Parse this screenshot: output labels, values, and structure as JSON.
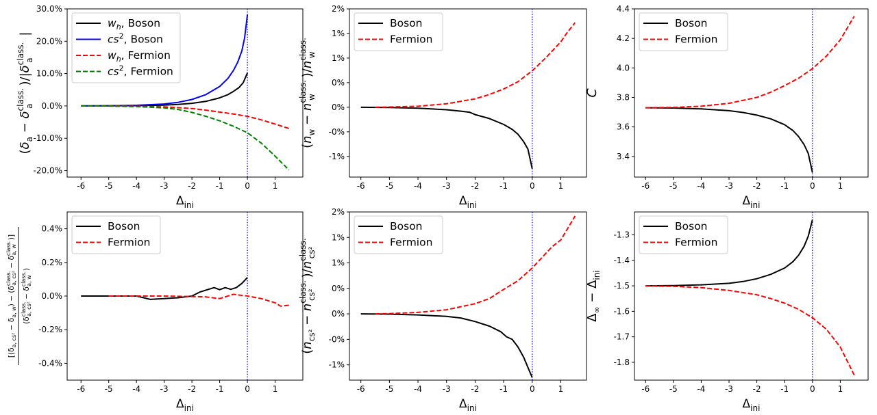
{
  "chart_data": [
    {
      "id": "p1",
      "type": "line",
      "xlabel": "Δ_ini",
      "ylabel": "(δ_a − δ_a^class.)/|δ_a^class.|",
      "xlim": [
        -6.5,
        2.0
      ],
      "ylim": [
        -22.0,
        30.0
      ],
      "xticks": [
        -6,
        -5,
        -4,
        -3,
        -2,
        -1,
        0,
        1
      ],
      "yticks": [
        -20,
        -10,
        0,
        10,
        20,
        30
      ],
      "ytick_labels": [
        "-20.0%",
        "-10.0%",
        "0.0%",
        "10.0%",
        "20.0%",
        "30.0%"
      ],
      "vline_x": 0,
      "legend_position": "top-left",
      "series": [
        {
          "name": "w_h, Boson",
          "legend_label": "w_h, Boson",
          "color": "#000000",
          "style": "solid",
          "x": [
            -6,
            -5,
            -4,
            -3,
            -2.5,
            -2,
            -1.5,
            -1,
            -0.7,
            -0.5,
            -0.3,
            -0.15,
            0
          ],
          "y": [
            0,
            0.02,
            0.08,
            0.25,
            0.45,
            0.8,
            1.4,
            2.5,
            3.5,
            4.5,
            5.7,
            7.2,
            10.2
          ]
        },
        {
          "name": "cs², Boson",
          "legend_label": "cs², Boson",
          "color": "#0000ff",
          "style": "solid",
          "x": [
            -6,
            -5,
            -4,
            -3,
            -2.5,
            -2,
            -1.5,
            -1,
            -0.7,
            -0.5,
            -0.35,
            -0.2,
            -0.1,
            0
          ],
          "y": [
            0,
            0.05,
            0.2,
            0.6,
            1.1,
            2.0,
            3.5,
            6.0,
            8.5,
            11.0,
            13.5,
            17.0,
            21.0,
            28.2
          ]
        },
        {
          "name": "w_h, Fermion",
          "legend_label": "w_h, Fermion",
          "color": "#ff0000",
          "style": "dashed",
          "x": [
            -6,
            -5,
            -4,
            -3,
            -2,
            -1.5,
            -1,
            -0.5,
            0,
            0.5,
            1,
            1.5
          ],
          "y": [
            0,
            -0.02,
            -0.1,
            -0.3,
            -0.8,
            -1.3,
            -1.9,
            -2.5,
            -3.2,
            -4.3,
            -5.6,
            -7.0
          ]
        },
        {
          "name": "cs², Fermion",
          "legend_label": "cs², Fermion",
          "color": "#008000",
          "style": "dashed",
          "x": [
            -6,
            -5,
            -4,
            -3,
            -2.5,
            -2,
            -1.5,
            -1,
            -0.5,
            0,
            0.5,
            1,
            1.5
          ],
          "y": [
            0,
            -0.05,
            -0.2,
            -0.6,
            -1.1,
            -2.0,
            -3.2,
            -4.6,
            -6.3,
            -8.3,
            -11.5,
            -15.5,
            -19.8
          ]
        }
      ]
    },
    {
      "id": "p2",
      "type": "line",
      "xlabel": "Δ_ini",
      "ylabel": "(n_w − n_w^class.)/n_w^class.",
      "xlim": [
        -6.4,
        1.9
      ],
      "ylim": [
        -1.42,
        2.0
      ],
      "xticks": [
        -6,
        -5,
        -4,
        -3,
        -2,
        -1,
        0,
        1
      ],
      "yticks": [
        -1.0,
        -0.5,
        0.0,
        0.5,
        1.0,
        1.5,
        2.0
      ],
      "ytick_labels": [
        "-1%",
        "-0%",
        "0%",
        "0%",
        "1%",
        "1%",
        "2%"
      ],
      "vline_x": 0,
      "legend_position": "top-left",
      "series": [
        {
          "name": "Boson",
          "legend_label": "Boson",
          "color": "#000000",
          "style": "solid",
          "x": [
            -6,
            -5,
            -4,
            -3,
            -2.5,
            -2.2,
            -2,
            -1.5,
            -1,
            -0.7,
            -0.5,
            -0.3,
            -0.15,
            0
          ],
          "y": [
            0,
            -0.005,
            -0.02,
            -0.05,
            -0.08,
            -0.1,
            -0.15,
            -0.23,
            -0.35,
            -0.45,
            -0.55,
            -0.7,
            -0.85,
            -1.25
          ]
        },
        {
          "name": "Fermion",
          "legend_label": "Fermion",
          "color": "#ff0000",
          "style": "dashed",
          "x": [
            -5.5,
            -5,
            -4,
            -3,
            -2,
            -1.5,
            -1,
            -0.5,
            0,
            0.5,
            1,
            1.2,
            1.5
          ],
          "y": [
            0,
            0.005,
            0.02,
            0.07,
            0.17,
            0.26,
            0.37,
            0.52,
            0.74,
            1.02,
            1.33,
            1.5,
            1.72
          ]
        }
      ]
    },
    {
      "id": "p3",
      "type": "line",
      "xlabel": "Δ_ini",
      "ylabel": "C",
      "xlim": [
        -6.4,
        2.0
      ],
      "ylim": [
        3.26,
        4.4
      ],
      "xticks": [
        -6,
        -5,
        -4,
        -3,
        -2,
        -1,
        0,
        1
      ],
      "yticks": [
        3.4,
        3.6,
        3.8,
        4.0,
        4.2,
        4.4
      ],
      "ytick_labels": [
        "3.4",
        "3.6",
        "3.8",
        "4.0",
        "4.2",
        "4.4"
      ],
      "vline_x": 0,
      "legend_position": "top-left",
      "series": [
        {
          "name": "Boson",
          "legend_label": "Boson",
          "color": "#000000",
          "style": "solid",
          "x": [
            -6,
            -5,
            -4,
            -3,
            -2.5,
            -2,
            -1.5,
            -1,
            -0.7,
            -0.5,
            -0.3,
            -0.15,
            0
          ],
          "y": [
            3.73,
            3.728,
            3.722,
            3.71,
            3.698,
            3.68,
            3.655,
            3.615,
            3.575,
            3.535,
            3.48,
            3.42,
            3.29
          ]
        },
        {
          "name": "Fermion",
          "legend_label": "Fermion",
          "color": "#ff0000",
          "style": "dashed",
          "x": [
            -6,
            -5,
            -4,
            -3,
            -2,
            -1.5,
            -1,
            -0.5,
            0,
            0.5,
            1,
            1.5
          ],
          "y": [
            3.73,
            3.732,
            3.74,
            3.76,
            3.8,
            3.835,
            3.88,
            3.93,
            3.995,
            4.08,
            4.19,
            4.35
          ]
        }
      ]
    },
    {
      "id": "p4",
      "type": "line",
      "xlabel": "Δ_ini",
      "ylabel": "[(δ_a,cs² − δ_a,w) − (δ_a,cs²^class. − δ_a,w^class.)] / (δ_a,cs²^class. − δ_a,w^class.)",
      "xlim": [
        -6.5,
        2.0
      ],
      "ylim": [
        -0.5,
        0.5
      ],
      "xticks": [
        -6,
        -5,
        -4,
        -3,
        -2,
        -1,
        0,
        1
      ],
      "yticks": [
        -0.4,
        -0.2,
        0.0,
        0.2,
        0.4
      ],
      "ytick_labels": [
        "-0.4%",
        "-0.2%",
        "0.0%",
        "0.2%",
        "0.4%"
      ],
      "vline_x": 0,
      "legend_position": "top-left",
      "series": [
        {
          "name": "Boson",
          "legend_label": "Boson",
          "color": "#000000",
          "style": "solid",
          "x": [
            -6,
            -5,
            -4,
            -3.5,
            -3,
            -2.5,
            -2,
            -1.7,
            -1.5,
            -1.2,
            -1,
            -0.8,
            -0.6,
            -0.4,
            -0.2,
            0
          ],
          "y": [
            0,
            0,
            0,
            -0.02,
            -0.015,
            -0.01,
            0.0,
            0.025,
            0.035,
            0.05,
            0.038,
            0.05,
            0.04,
            0.05,
            0.075,
            0.11
          ]
        },
        {
          "name": "Fermion",
          "legend_label": "Fermion",
          "color": "#ff0000",
          "style": "dashed",
          "x": [
            -5,
            -4,
            -3,
            -2,
            -1.5,
            -1,
            -0.5,
            0,
            0.5,
            0.8,
            1,
            1.2,
            1.5
          ],
          "y": [
            0,
            0,
            0,
            -0.003,
            -0.005,
            -0.015,
            0.01,
            0.0,
            -0.015,
            -0.03,
            -0.04,
            -0.06,
            -0.055
          ]
        }
      ]
    },
    {
      "id": "p5",
      "type": "line",
      "xlabel": "Δ_ini",
      "ylabel": "(n_cs² − n_cs²^class.)/n_cs²^class.",
      "xlim": [
        -6.4,
        1.9
      ],
      "ylim": [
        -1.3,
        2.0
      ],
      "xticks": [
        -6,
        -5,
        -4,
        -3,
        -2,
        -1,
        0,
        1
      ],
      "yticks": [
        -1.0,
        -0.5,
        0.0,
        0.5,
        1.0,
        1.5,
        2.0
      ],
      "ytick_labels": [
        "-1%",
        "-0%",
        "0%",
        "0%",
        "1%",
        "1%",
        "2%"
      ],
      "vline_x": 0,
      "legend_position": "top-left",
      "series": [
        {
          "name": "Boson",
          "legend_label": "Boson",
          "color": "#000000",
          "style": "solid",
          "x": [
            -6,
            -5,
            -4,
            -3,
            -2.5,
            -2,
            -1.5,
            -1.1,
            -0.9,
            -0.7,
            -0.5,
            -0.3,
            -0.15,
            0
          ],
          "y": [
            0,
            -0.005,
            -0.02,
            -0.05,
            -0.08,
            -0.15,
            -0.24,
            -0.35,
            -0.45,
            -0.5,
            -0.65,
            -0.85,
            -1.05,
            -1.25
          ]
        },
        {
          "name": "Fermion",
          "legend_label": "Fermion",
          "color": "#ff0000",
          "style": "dashed",
          "x": [
            -5.5,
            -5,
            -4,
            -3,
            -2,
            -1.5,
            -1,
            -0.5,
            0,
            0.5,
            0.7,
            1,
            1.5
          ],
          "y": [
            0,
            0.005,
            0.03,
            0.08,
            0.2,
            0.3,
            0.48,
            0.65,
            0.9,
            1.2,
            1.32,
            1.45,
            1.92
          ]
        }
      ]
    },
    {
      "id": "p6",
      "type": "line",
      "xlabel": "Δ_ini",
      "ylabel": "Δ_∞ − Δ_ini",
      "xlim": [
        -6.4,
        2.0
      ],
      "ylim": [
        -1.87,
        -1.21
      ],
      "xticks": [
        -6,
        -5,
        -4,
        -3,
        -2,
        -1,
        0,
        1
      ],
      "yticks": [
        -1.8,
        -1.7,
        -1.6,
        -1.5,
        -1.4,
        -1.3
      ],
      "ytick_labels": [
        "-1.8",
        "-1.7",
        "-1.6",
        "-1.5",
        "-1.4",
        "-1.3"
      ],
      "vline_x": 0,
      "legend_position": "top-left",
      "series": [
        {
          "name": "Boson",
          "legend_label": "Boson",
          "color": "#000000",
          "style": "solid",
          "x": [
            -6,
            -5,
            -4,
            -3,
            -2.5,
            -2,
            -1.5,
            -1,
            -0.7,
            -0.5,
            -0.3,
            -0.15,
            0
          ],
          "y": [
            -1.5,
            -1.499,
            -1.496,
            -1.49,
            -1.483,
            -1.472,
            -1.455,
            -1.43,
            -1.405,
            -1.38,
            -1.345,
            -1.305,
            -1.24
          ]
        },
        {
          "name": "Fermion",
          "legend_label": "Fermion",
          "color": "#ff0000",
          "style": "dashed",
          "x": [
            -6,
            -5,
            -4,
            -3,
            -2,
            -1.5,
            -1,
            -0.5,
            0,
            0.5,
            1,
            1.5
          ],
          "y": [
            -1.5,
            -1.502,
            -1.507,
            -1.518,
            -1.535,
            -1.55,
            -1.568,
            -1.592,
            -1.625,
            -1.67,
            -1.74,
            -1.85
          ]
        }
      ]
    }
  ]
}
